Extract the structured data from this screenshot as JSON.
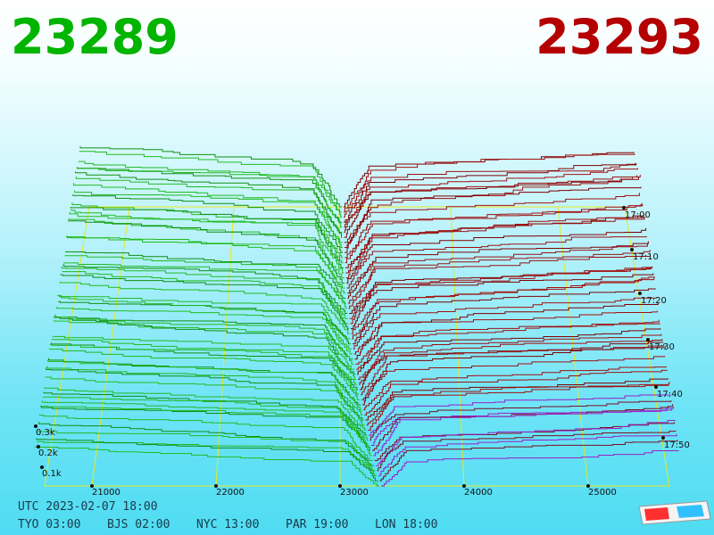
{
  "bid": "23289",
  "ask": "23293",
  "price_axis": [
    "21000",
    "22000",
    "23000",
    "24000",
    "25000"
  ],
  "volume_axis": [
    "0.3k",
    "0.2k",
    "0.1k"
  ],
  "time_axis": [
    "17:00",
    "17:10",
    "17:20",
    "17:30",
    "17:40",
    "17:50"
  ],
  "clock": {
    "utc": "UTC 2023-02-07 18:00",
    "cities": [
      "TYO 03:00",
      "BJS 02:00",
      "NYC 13:00",
      "PAR 19:00",
      "LON 18:00"
    ]
  }
}
